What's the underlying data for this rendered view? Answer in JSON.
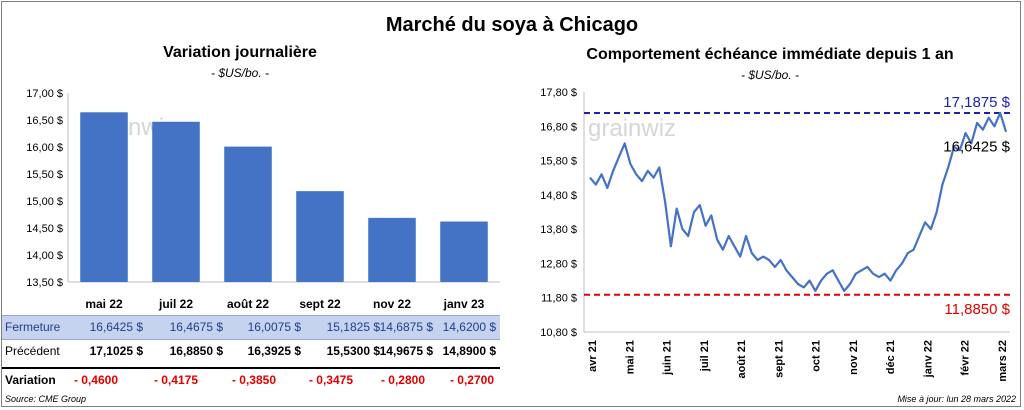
{
  "title": "Marché du soya à Chicago",
  "left_chart": {
    "title": "Variation  journalière",
    "subtitle": "- $US/bo. -"
  },
  "right_chart": {
    "title": "Comportement  échéance immédiate depuis 1 an",
    "subtitle": "- $US/bo. -"
  },
  "watermark": "grainwiz",
  "chart_data": [
    {
      "type": "bar",
      "title": "Variation  journalière",
      "subtitle": "- $US/bo. -",
      "categories": [
        "mai 22",
        "juil 22",
        "août 22",
        "sept 22",
        "nov 22",
        "janv 23"
      ],
      "values": [
        16.6425,
        16.4675,
        16.0075,
        15.1825,
        14.6875,
        14.62
      ],
      "ylim": [
        13.5,
        17.0
      ],
      "yticks": [
        "17,00 $",
        "16,50 $",
        "16,00 $",
        "15,50 $",
        "15,00 $",
        "14,50 $",
        "14,00 $",
        "13,50 $"
      ],
      "color": "#4472c4"
    },
    {
      "type": "line",
      "title": "Comportement  échéance immédiate depuis 1 an",
      "subtitle": "- $US/bo. -",
      "x_labels": [
        "avr 21",
        "mai 21",
        "juin 21",
        "juil 21",
        "août 21",
        "sept 21",
        "oct 21",
        "nov 21",
        "déc 21",
        "janv 22",
        "févr 22",
        "mars 22"
      ],
      "ylim": [
        10.8,
        17.8
      ],
      "yticks": [
        "17,80 $",
        "16,80 $",
        "15,80 $",
        "14,80 $",
        "13,80 $",
        "12,80 $",
        "11,80 $",
        "10,80 $"
      ],
      "values": [
        15.3,
        15.1,
        15.4,
        15.0,
        15.5,
        15.9,
        16.3,
        15.7,
        15.4,
        15.2,
        15.5,
        15.3,
        15.6,
        14.6,
        13.3,
        14.4,
        13.8,
        13.6,
        14.3,
        14.5,
        13.9,
        14.2,
        13.5,
        13.2,
        13.6,
        13.3,
        13.0,
        13.6,
        13.1,
        12.9,
        13.0,
        12.9,
        12.7,
        12.9,
        12.6,
        12.4,
        12.2,
        12.1,
        12.3,
        12.0,
        12.3,
        12.5,
        12.6,
        12.3,
        12.0,
        12.2,
        12.5,
        12.6,
        12.7,
        12.5,
        12.4,
        12.5,
        12.3,
        12.6,
        12.8,
        13.1,
        13.2,
        13.6,
        14.0,
        13.8,
        14.3,
        15.1,
        15.6,
        16.2,
        16.1,
        16.6,
        16.3,
        16.9,
        16.7,
        17.05,
        16.8,
        17.19,
        16.64
      ],
      "max": {
        "value": 17.1875,
        "label": "17,1875 $",
        "color": "#2020b0"
      },
      "min": {
        "value": 11.885,
        "label": "11,8850 $",
        "color": "#e00000"
      },
      "last": {
        "value": 16.6425,
        "label": "16,6425 $"
      },
      "color": "#4472c4"
    }
  ],
  "table": {
    "rows": [
      {
        "label": "Fermeture",
        "cells": [
          "16,6425  $",
          "16,4675  $",
          "16,0075  $",
          "15,1825  $",
          "14,6875  $",
          "14,6200  $"
        ]
      },
      {
        "label": "Précédent",
        "cells": [
          "17,1025  $",
          "16,8850  $",
          "16,3925  $",
          "15,5300  $",
          "14,9675  $",
          "14,8900  $"
        ]
      },
      {
        "label": "Variation",
        "cells": [
          "- 0,4600",
          "- 0,4175",
          "- 0,3850",
          "- 0,3475",
          "- 0,2800",
          "- 0,2700"
        ]
      }
    ]
  },
  "source": "Source: CME Group",
  "updated": "Mise à jour: lun 28 mars 2022"
}
